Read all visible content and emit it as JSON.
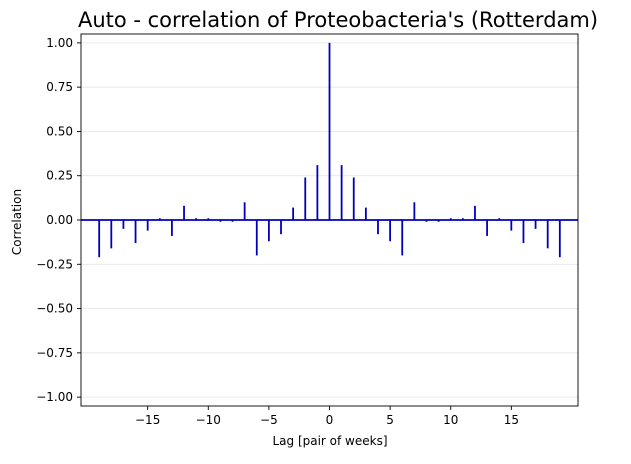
{
  "chart_data": {
    "type": "bar",
    "title": "Auto - correlation of Proteobacteria's (Rotterdam)",
    "xlabel": "Lag [pair of weeks]",
    "ylabel": "Correlation",
    "xlim": [
      -20.5,
      20.5
    ],
    "ylim": [
      -1.05,
      1.05
    ],
    "x_ticks": [
      -15,
      -10,
      -5,
      0,
      5,
      10,
      15
    ],
    "x_tick_labels": [
      "−15",
      "−10",
      "−5",
      "0",
      "5",
      "10",
      "15"
    ],
    "y_ticks": [
      -1.0,
      -0.75,
      -0.5,
      -0.25,
      0.0,
      0.25,
      0.5,
      0.75,
      1.0
    ],
    "y_tick_labels": [
      "−1.00",
      "−0.75",
      "−0.50",
      "−0.25",
      "0.00",
      "0.25",
      "0.50",
      "0.75",
      "1.00"
    ],
    "grid": "horizontal",
    "color": "#0000bb",
    "zero_line": true,
    "lags": [
      -19,
      -18,
      -17,
      -16,
      -15,
      -14,
      -13,
      -12,
      -11,
      -10,
      -9,
      -8,
      -7,
      -6,
      -5,
      -4,
      -3,
      -2,
      -1,
      0,
      1,
      2,
      3,
      4,
      5,
      6,
      7,
      8,
      9,
      10,
      11,
      12,
      13,
      14,
      15,
      16,
      17,
      18,
      19
    ],
    "values": [
      -0.21,
      -0.16,
      -0.05,
      -0.13,
      -0.06,
      0.01,
      -0.09,
      0.08,
      0.01,
      0.01,
      -0.01,
      -0.01,
      0.1,
      -0.2,
      -0.12,
      -0.08,
      0.07,
      0.24,
      0.31,
      1.0,
      0.31,
      0.24,
      0.07,
      -0.08,
      -0.12,
      -0.2,
      0.1,
      -0.01,
      -0.01,
      0.01,
      0.01,
      0.08,
      -0.09,
      0.01,
      -0.06,
      -0.13,
      -0.05,
      -0.16,
      -0.21
    ]
  }
}
